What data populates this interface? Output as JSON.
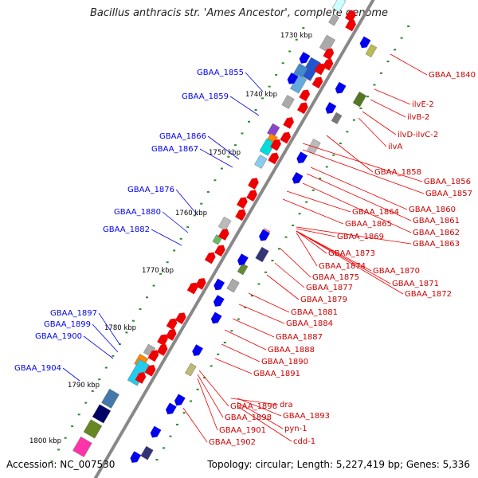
{
  "title": "Bacillus anthracis str. 'Ames Ancestor', complete genome",
  "accession": "Accession: NC_007530",
  "topology": "Topology: circular; Length: 5,227,419 bp; Genes: 5,336",
  "colors": {
    "forward": "#ee0000",
    "reverse": "#0000ee",
    "ticks": "#2a8a2a",
    "backbone": "#888888"
  },
  "kbp_labels": [
    "1730 kbp",
    "1740 kbp",
    "1750 kbp",
    "1760 kbp",
    "1770 kbp",
    "1780 kbp",
    "1790 kbp",
    "1800 kbp"
  ],
  "left_labels": [
    "GBAA_1855",
    "GBAA_1859",
    "GBAA_1866",
    "GBAA_1867",
    "GBAA_1876",
    "GBAA_1880",
    "GBAA_1882",
    "GBAA_1897",
    "GBAA_1899",
    "GBAA_1900",
    "GBAA_1904"
  ],
  "right_labels": [
    "GBAA_1840",
    "ilvE-2",
    "ilvB-2",
    "ilvD-ilvC-2",
    "ilvA",
    "GBAA_1858",
    "GBAA_1856",
    "GBAA_1857",
    "GBAA_1860",
    "GBAA_1861",
    "GBAA_1864",
    "GBAA_1862",
    "GBAA_1865",
    "GBAA_1863",
    "GBAA_1869",
    "GBAA_1873",
    "GBAA_1874",
    "GBAA_1870",
    "GBAA_1875",
    "GBAA_1871",
    "GBAA_1877",
    "GBAA_1872",
    "GBAA_1879",
    "GBAA_1881",
    "GBAA_1884",
    "GBAA_1887",
    "GBAA_1888",
    "GBAA_1890",
    "GBAA_1891",
    "GBAA_1896",
    "dra",
    "GBAA_1893",
    "GBAA_1898",
    "GBAA_1901",
    "pyn-1",
    "cdd-1",
    "GBAA_1902"
  ]
}
